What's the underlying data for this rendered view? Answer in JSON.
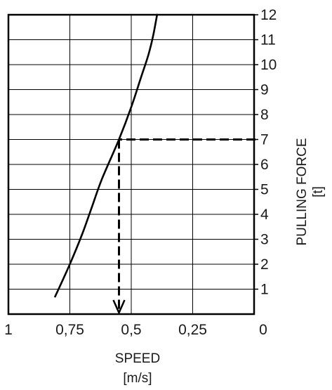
{
  "chart_data": {
    "type": "line",
    "title": "",
    "xlabel": "SPEED",
    "xunit": "[m/s]",
    "ylabel": "PULLING FORCE",
    "yunit": "[t]",
    "x_reversed": true,
    "xlim": [
      1,
      0
    ],
    "ylim": [
      0,
      12
    ],
    "grid": true,
    "x_ticks": [
      1,
      0.75,
      0.5,
      0.25,
      0
    ],
    "x_tick_labels": [
      "1",
      "0,75",
      "0,5",
      "0,25",
      "0"
    ],
    "y_ticks": [
      1,
      2,
      3,
      4,
      5,
      6,
      7,
      8,
      9,
      10,
      11,
      12
    ],
    "y_tick_labels": [
      "1",
      "2",
      "3",
      "4",
      "5",
      "6",
      "7",
      "8",
      "9",
      "10",
      "11",
      "12"
    ],
    "series": [
      {
        "color": "#000000",
        "points": [
          {
            "x": 0.81,
            "y": 0.7
          },
          {
            "x": 0.75,
            "y": 2.0
          },
          {
            "x": 0.7,
            "y": 3.2
          },
          {
            "x": 0.66,
            "y": 4.3
          },
          {
            "x": 0.62,
            "y": 5.4
          },
          {
            "x": 0.55,
            "y": 7.0
          },
          {
            "x": 0.5,
            "y": 8.3
          },
          {
            "x": 0.46,
            "y": 9.5
          },
          {
            "x": 0.43,
            "y": 10.4
          },
          {
            "x": 0.41,
            "y": 11.2
          },
          {
            "x": 0.395,
            "y": 12.0
          }
        ]
      }
    ],
    "annotation": {
      "style": "dashed",
      "force": 7,
      "speed": 0.55,
      "note": "dashed horizontal line from y=7 on the right axis to the curve, then vertical arrow down to the speed axis"
    }
  }
}
